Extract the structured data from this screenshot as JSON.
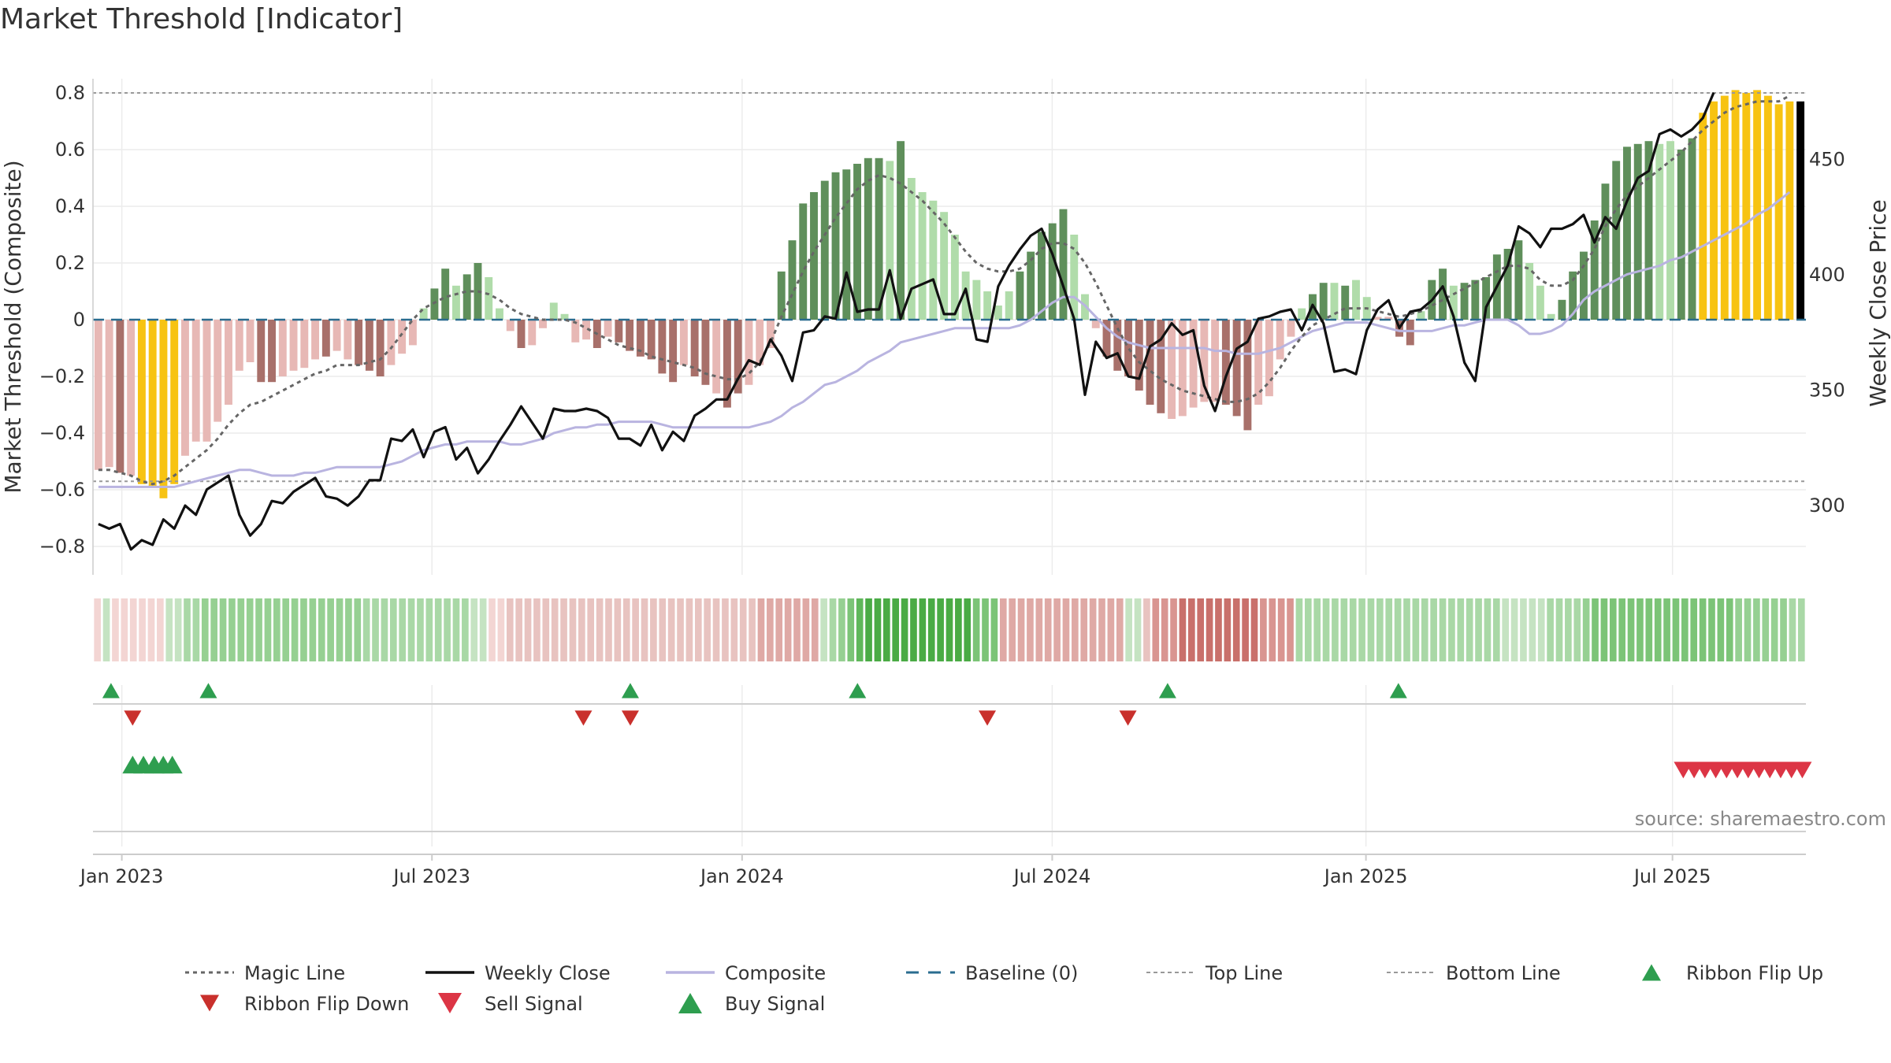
{
  "chart_data": {
    "type": "bar",
    "title": "Market Threshold [Indicator]",
    "ylabel": "Market Threshold (Composite)",
    "y2label": "Weekly Close Price",
    "ylim": [
      -0.9,
      0.85
    ],
    "y2lim": [
      270,
      485
    ],
    "y_ticks": [
      0.8,
      0.6,
      0.4,
      0.2,
      0,
      -0.2,
      -0.4,
      -0.6,
      -0.8
    ],
    "y_tick_labels": [
      "0.8",
      "0.6",
      "0.4",
      "0.2",
      "0",
      "−0.2",
      "−0.4",
      "−0.6",
      "−0.8"
    ],
    "y2_ticks": [
      450,
      400,
      350,
      300
    ],
    "y2_tick_labels": [
      "450",
      "400",
      "350",
      "300"
    ],
    "x_ticks": [
      1.6,
      18.8,
      36,
      53.2,
      70.6,
      87.6
    ],
    "x_tick_labels": [
      "Jan 2023",
      "Jul 2023",
      "Jan 2024",
      "Jul 2024",
      "Jan 2025",
      "Jul 2025"
    ],
    "n_weeks": 95,
    "top_line": 0.8,
    "bottom_line": -0.57,
    "bars": [
      -0.53,
      -0.52,
      -0.54,
      -0.55,
      -0.58,
      -0.59,
      -0.63,
      -0.58,
      -0.48,
      -0.43,
      -0.43,
      -0.36,
      -0.3,
      -0.18,
      -0.15,
      -0.22,
      -0.22,
      -0.2,
      -0.18,
      -0.17,
      -0.14,
      -0.13,
      -0.11,
      -0.14,
      -0.16,
      -0.18,
      -0.2,
      -0.16,
      -0.12,
      -0.09,
      0.04,
      0.11,
      0.18,
      0.12,
      0.16,
      0.2,
      0.15,
      0.04,
      -0.04,
      -0.1,
      -0.09,
      -0.03,
      0.06,
      0.02,
      -0.08,
      -0.07,
      -0.1,
      -0.06,
      -0.08,
      -0.11,
      -0.13,
      -0.14,
      -0.19,
      -0.22,
      -0.16,
      -0.2,
      -0.23,
      -0.26,
      -0.31,
      -0.26,
      -0.23,
      -0.16,
      -0.1,
      0.17,
      0.28,
      0.41,
      0.45,
      0.49,
      0.52,
      0.53,
      0.55,
      0.57,
      0.57,
      0.56,
      0.63,
      0.5,
      0.45,
      0.42,
      0.38,
      0.3,
      0.17,
      0.14,
      0.1,
      0.05,
      0.1,
      0.17,
      0.24,
      0.31,
      0.34,
      0.39,
      0.3,
      0.09,
      -0.03,
      -0.13,
      -0.18,
      -0.2,
      -0.25,
      -0.3,
      -0.33,
      -0.35,
      -0.34,
      -0.31,
      -0.29,
      -0.29,
      -0.3,
      -0.34,
      -0.39,
      -0.3,
      -0.27,
      -0.14,
      -0.06,
      0.04,
      0.09,
      0.13,
      0.13,
      0.12,
      0.14,
      0.08,
      0.01,
      0.01,
      -0.06,
      -0.09,
      0.03,
      0.14,
      0.18,
      0.12,
      0.13,
      0.14,
      0.15,
      0.23,
      0.25,
      0.28,
      0.2,
      0.12,
      0.02,
      0.07,
      0.17,
      0.24,
      0.35,
      0.48,
      0.56,
      0.61,
      0.62,
      0.63,
      0.62,
      0.63,
      0.6,
      0.64,
      0.73,
      0.77,
      0.79,
      0.81,
      0.8,
      0.81,
      0.79,
      0.76,
      0.77,
      0.77
    ],
    "bar_colors": [
      "#e7b8b5",
      "#e7b8b5",
      "#a8706a",
      "#e7b8b5",
      "#f7c312",
      "#f7c312",
      "#f7c312",
      "#f7c312",
      "#e7b8b5",
      "#e7b8b5",
      "#e7b8b5",
      "#e7b8b5",
      "#e7b8b5",
      "#e7b8b5",
      "#e7b8b5",
      "#a8706a",
      "#a8706a",
      "#e7b8b5",
      "#e7b8b5",
      "#e7b8b5",
      "#e7b8b5",
      "#a8706a",
      "#e7b8b5",
      "#e7b8b5",
      "#a8706a",
      "#a8706a",
      "#a8706a",
      "#e7b8b5",
      "#e7b8b5",
      "#e7b8b5",
      "#b0dcaa",
      "#5f8f5b",
      "#5f8f5b",
      "#b0dcaa",
      "#5f8f5b",
      "#5f8f5b",
      "#b0dcaa",
      "#b0dcaa",
      "#e7b8b5",
      "#a8706a",
      "#e7b8b5",
      "#e7b8b5",
      "#b0dcaa",
      "#b0dcaa",
      "#e7b8b5",
      "#e7b8b5",
      "#a8706a",
      "#e7b8b5",
      "#a8706a",
      "#a8706a",
      "#a8706a",
      "#a8706a",
      "#a8706a",
      "#a8706a",
      "#e7b8b5",
      "#a8706a",
      "#a8706a",
      "#e7b8b5",
      "#a8706a",
      "#a8706a",
      "#e7b8b5",
      "#e7b8b5",
      "#e7b8b5",
      "#5f8f5b",
      "#5f8f5b",
      "#5f8f5b",
      "#5f8f5b",
      "#5f8f5b",
      "#5f8f5b",
      "#5f8f5b",
      "#5f8f5b",
      "#5f8f5b",
      "#5f8f5b",
      "#b0dcaa",
      "#5f8f5b",
      "#b0dcaa",
      "#b0dcaa",
      "#b0dcaa",
      "#b0dcaa",
      "#b0dcaa",
      "#b0dcaa",
      "#b0dcaa",
      "#b0dcaa",
      "#b0dcaa",
      "#b0dcaa",
      "#5f8f5b",
      "#5f8f5b",
      "#5f8f5b",
      "#5f8f5b",
      "#5f8f5b",
      "#b0dcaa",
      "#b0dcaa",
      "#e7b8b5",
      "#a8706a",
      "#a8706a",
      "#a8706a",
      "#a8706a",
      "#a8706a",
      "#a8706a",
      "#e7b8b5",
      "#e7b8b5",
      "#e7b8b5",
      "#e7b8b5",
      "#e7b8b5",
      "#a8706a",
      "#a8706a",
      "#a8706a",
      "#e7b8b5",
      "#e7b8b5",
      "#e7b8b5",
      "#e7b8b5",
      "#b0dcaa",
      "#5f8f5b",
      "#5f8f5b",
      "#b0dcaa",
      "#5f8f5b",
      "#b0dcaa",
      "#b0dcaa",
      "#e7b8b5",
      "#e7b8b5",
      "#a8706a",
      "#a8706a",
      "#b0dcaa",
      "#5f8f5b",
      "#5f8f5b",
      "#b0dcaa",
      "#5f8f5b",
      "#5f8f5b",
      "#5f8f5b",
      "#5f8f5b",
      "#5f8f5b",
      "#5f8f5b",
      "#b0dcaa",
      "#b0dcaa",
      "#b0dcaa",
      "#5f8f5b",
      "#5f8f5b",
      "#5f8f5b",
      "#5f8f5b",
      "#5f8f5b",
      "#5f8f5b",
      "#5f8f5b",
      "#5f8f5b",
      "#5f8f5b",
      "#b0dcaa",
      "#b0dcaa",
      "#5f8f5b",
      "#5f8f5b",
      "#f7c312",
      "#f7c312",
      "#f7c312",
      "#f7c312",
      "#f7c312",
      "#f7c312",
      "#f7c312",
      "#f7c312",
      "#f7c312"
    ],
    "magic_line": [
      -0.53,
      -0.53,
      -0.54,
      -0.55,
      -0.57,
      -0.58,
      -0.57,
      -0.55,
      -0.52,
      -0.49,
      -0.46,
      -0.42,
      -0.37,
      -0.33,
      -0.3,
      -0.29,
      -0.27,
      -0.25,
      -0.23,
      -0.21,
      -0.19,
      -0.18,
      -0.16,
      -0.16,
      -0.16,
      -0.15,
      -0.14,
      -0.1,
      -0.05,
      0.0,
      0.04,
      0.06,
      0.08,
      0.09,
      0.1,
      0.1,
      0.09,
      0.07,
      0.04,
      0.02,
      0.01,
      0.0,
      0.0,
      0.0,
      -0.01,
      -0.03,
      -0.05,
      -0.07,
      -0.09,
      -0.1,
      -0.11,
      -0.13,
      -0.14,
      -0.15,
      -0.16,
      -0.17,
      -0.19,
      -0.2,
      -0.21,
      -0.21,
      -0.19,
      -0.15,
      -0.08,
      0.01,
      0.09,
      0.17,
      0.24,
      0.3,
      0.36,
      0.41,
      0.46,
      0.49,
      0.51,
      0.5,
      0.48,
      0.45,
      0.42,
      0.38,
      0.34,
      0.29,
      0.24,
      0.2,
      0.18,
      0.17,
      0.17,
      0.18,
      0.21,
      0.25,
      0.27,
      0.27,
      0.25,
      0.2,
      0.13,
      0.05,
      -0.03,
      -0.1,
      -0.15,
      -0.18,
      -0.21,
      -0.23,
      -0.25,
      -0.26,
      -0.27,
      -0.28,
      -0.29,
      -0.29,
      -0.28,
      -0.26,
      -0.22,
      -0.17,
      -0.11,
      -0.06,
      -0.02,
      0.0,
      0.02,
      0.04,
      0.04,
      0.04,
      0.03,
      0.02,
      0.01,
      0.02,
      0.03,
      0.05,
      0.07,
      0.09,
      0.11,
      0.13,
      0.15,
      0.17,
      0.19,
      0.19,
      0.18,
      0.14,
      0.12,
      0.12,
      0.14,
      0.19,
      0.25,
      0.33,
      0.39,
      0.44,
      0.47,
      0.5,
      0.53,
      0.56,
      0.59,
      0.63,
      0.67,
      0.7,
      0.73,
      0.75,
      0.76,
      0.77,
      0.77,
      0.77,
      0.79
    ],
    "composite_line": [
      -0.59,
      -0.59,
      -0.59,
      -0.59,
      -0.59,
      -0.59,
      -0.59,
      -0.59,
      -0.58,
      -0.57,
      -0.56,
      -0.55,
      -0.54,
      -0.53,
      -0.53,
      -0.54,
      -0.55,
      -0.55,
      -0.55,
      -0.54,
      -0.54,
      -0.53,
      -0.52,
      -0.52,
      -0.52,
      -0.52,
      -0.52,
      -0.51,
      -0.5,
      -0.48,
      -0.46,
      -0.45,
      -0.44,
      -0.44,
      -0.43,
      -0.43,
      -0.43,
      -0.43,
      -0.44,
      -0.44,
      -0.43,
      -0.42,
      -0.4,
      -0.39,
      -0.38,
      -0.38,
      -0.37,
      -0.37,
      -0.36,
      -0.36,
      -0.36,
      -0.36,
      -0.37,
      -0.38,
      -0.38,
      -0.38,
      -0.38,
      -0.38,
      -0.38,
      -0.38,
      -0.38,
      -0.37,
      -0.36,
      -0.34,
      -0.31,
      -0.29,
      -0.26,
      -0.23,
      -0.22,
      -0.2,
      -0.18,
      -0.15,
      -0.13,
      -0.11,
      -0.08,
      -0.07,
      -0.06,
      -0.05,
      -0.04,
      -0.03,
      -0.03,
      -0.03,
      -0.03,
      -0.03,
      -0.03,
      -0.02,
      0.0,
      0.03,
      0.06,
      0.08,
      0.08,
      0.05,
      0.01,
      -0.03,
      -0.06,
      -0.08,
      -0.09,
      -0.1,
      -0.1,
      -0.1,
      -0.1,
      -0.1,
      -0.1,
      -0.11,
      -0.11,
      -0.12,
      -0.12,
      -0.12,
      -0.11,
      -0.1,
      -0.08,
      -0.06,
      -0.04,
      -0.03,
      -0.02,
      -0.01,
      -0.01,
      -0.01,
      -0.02,
      -0.03,
      -0.04,
      -0.04,
      -0.04,
      -0.04,
      -0.03,
      -0.02,
      -0.02,
      -0.01,
      0.0,
      0.0,
      0.0,
      -0.02,
      -0.05,
      -0.05,
      -0.04,
      -0.02,
      0.02,
      0.07,
      0.1,
      0.12,
      0.14,
      0.16,
      0.17,
      0.18,
      0.19,
      0.21,
      0.22,
      0.24,
      0.26,
      0.28,
      0.3,
      0.32,
      0.34,
      0.37,
      0.39,
      0.42,
      0.45
    ],
    "weekly_close": [
      292,
      290,
      292,
      281,
      285,
      283,
      294,
      290,
      300,
      296,
      307,
      310,
      313,
      296,
      287,
      292,
      302,
      301,
      306,
      309,
      312,
      304,
      303,
      300,
      304,
      311,
      311,
      329,
      328,
      333,
      321,
      332,
      334,
      320,
      325,
      314,
      320,
      328,
      335,
      343,
      336,
      329,
      342,
      341,
      341,
      342,
      341,
      338,
      329,
      329,
      326,
      335,
      324,
      332,
      328,
      339,
      342,
      346,
      346,
      355,
      363,
      361,
      372,
      365,
      354,
      375,
      376,
      382,
      381,
      401,
      384,
      385,
      385,
      402,
      381,
      394,
      396,
      398,
      383,
      383,
      394,
      372,
      371,
      395,
      404,
      411,
      417,
      420,
      409,
      395,
      381,
      348,
      371,
      364,
      366,
      356,
      355,
      369,
      372,
      379,
      374,
      376,
      352,
      341,
      356,
      368,
      371,
      381,
      382,
      384,
      385,
      376,
      387,
      379,
      358,
      359,
      357,
      376,
      385,
      389,
      377,
      384,
      385,
      389,
      395,
      382,
      362,
      354,
      386,
      395,
      404,
      421,
      418,
      412,
      420,
      420,
      422,
      426,
      414,
      425,
      420,
      432,
      442,
      445,
      461,
      463,
      460,
      463,
      468,
      479
    ],
    "ribbon_colors": [
      "#f3d5d3",
      "#c5e3c2",
      "#f3d5d3",
      "#f3d5d3",
      "#f3d5d3",
      "#f3d5d3",
      "#f3d5d3",
      "#f3d5d3",
      "#c5e3c2",
      "#c5e3c2",
      "#a9d8a6",
      "#a9d8a6",
      "#96d092",
      "#96d092",
      "#96d092",
      "#96d092",
      "#96d092",
      "#96d092",
      "#96d092",
      "#96d092",
      "#96d092",
      "#96d092",
      "#96d092",
      "#96d092",
      "#96d092",
      "#96d092",
      "#96d092",
      "#96d092",
      "#96d092",
      "#96d092",
      "#a9d8a6",
      "#a9d8a6",
      "#a9d8a6",
      "#a9d8a6",
      "#a9d8a6",
      "#a9d8a6",
      "#a9d8a6",
      "#a9d8a6",
      "#a9d8a6",
      "#a9d8a6",
      "#a9d8a6",
      "#a9d8a6",
      "#c5e3c2",
      "#c5e3c2",
      "#f3d5d3",
      "#f3d5d3",
      "#e8c3c0",
      "#e8c3c0",
      "#e8c3c0",
      "#e8c3c0",
      "#e8c3c0",
      "#e8c3c0",
      "#e8c3c0",
      "#e8c3c0",
      "#e8c3c0",
      "#e8c3c0",
      "#e8c3c0",
      "#e8c3c0",
      "#e8c3c0",
      "#e8c3c0",
      "#e8c3c0",
      "#e8c3c0",
      "#e8c3c0",
      "#e8c3c0",
      "#e8c3c0",
      "#e8c3c0",
      "#e8c3c0",
      "#e8c3c0",
      "#e8c3c0",
      "#e8c3c0",
      "#e8c3c0",
      "#e8c3c0",
      "#e8c3c0",
      "#e8c3c0",
      "#dfa9a5",
      "#dfa9a5",
      "#dfa9a5",
      "#dfa9a5",
      "#dfa9a5",
      "#dfa9a5",
      "#dfa9a5",
      "#c5e3c2",
      "#a9d8a6",
      "#96d092",
      "#7cc477",
      "#5fb75a",
      "#4aab45",
      "#4aab45",
      "#4aab45",
      "#4aab45",
      "#4aab45",
      "#4aab45",
      "#4aab45",
      "#4aab45",
      "#4aab45",
      "#4aab45",
      "#4aab45",
      "#4aab45",
      "#7cc477",
      "#7cc477",
      "#7cc477",
      "#dfa9a5",
      "#dfa9a5",
      "#dfa9a5",
      "#dfa9a5",
      "#dfa9a5",
      "#dfa9a5",
      "#dfa9a5",
      "#dfa9a5",
      "#dfa9a5",
      "#dfa9a5",
      "#dfa9a5",
      "#dfa9a5",
      "#dfa9a5",
      "#dfa9a5",
      "#c5e3c2",
      "#c5e3c2",
      "#e8c3c0",
      "#d99591",
      "#d99591",
      "#d99591",
      "#c9706b",
      "#c9706b",
      "#c9706b",
      "#c9706b",
      "#c9706b",
      "#c9706b",
      "#c9706b",
      "#c9706b",
      "#c9706b",
      "#d99591",
      "#d99591",
      "#d99591",
      "#d99591",
      "#a9d8a6",
      "#a9d8a6",
      "#a9d8a6",
      "#a9d8a6",
      "#a9d8a6",
      "#a9d8a6",
      "#a9d8a6",
      "#a9d8a6",
      "#a9d8a6",
      "#a9d8a6",
      "#a9d8a6",
      "#a9d8a6",
      "#a9d8a6",
      "#a9d8a6",
      "#a9d8a6",
      "#a9d8a6",
      "#a9d8a6",
      "#a9d8a6",
      "#a9d8a6",
      "#a9d8a6",
      "#a9d8a6",
      "#a9d8a6",
      "#a9d8a6",
      "#c5e3c2",
      "#c5e3c2",
      "#c5e3c2",
      "#c5e3c2",
      "#c5e3c2",
      "#a9d8a6",
      "#a9d8a6",
      "#a9d8a6",
      "#a9d8a6",
      "#96d092",
      "#7cc477",
      "#7cc477",
      "#7cc477",
      "#7cc477",
      "#7cc477",
      "#7cc477",
      "#7cc477",
      "#7cc477",
      "#7cc477",
      "#7cc477",
      "#7cc477",
      "#7cc477",
      "#7cc477",
      "#7cc477",
      "#7cc477",
      "#7cc477",
      "#96d092",
      "#96d092",
      "#96d092",
      "#96d092",
      "#96d092",
      "#96d092",
      "#a9d8a6",
      "#a9d8a6"
    ],
    "ribbon_flip_up": [
      1.0,
      6.4,
      29.8,
      42.4,
      59.6,
      72.4
    ],
    "ribbon_flip_down": [
      2.2,
      27.2,
      29.8,
      49.6,
      57.4
    ],
    "buy_signals": [
      2.2,
      2.8,
      3.4,
      3.9,
      4.4
    ],
    "sell_signals": [
      88.2,
      88.8,
      89.4,
      90.0,
      90.6,
      91.2,
      91.8,
      92.4,
      93.0,
      93.6,
      94.2,
      94.8
    ],
    "colors": {
      "bar_dark_green": "#5f8f5b",
      "bar_light_green": "#b0dcaa",
      "bar_dark_red": "#a8706a",
      "bar_light_red": "#e7b8b5",
      "bar_yellow": "#f7c312",
      "magic_line": "#666666",
      "weekly_close": "#111111",
      "composite": "#b9b4e0",
      "baseline": "#2a6c8f",
      "ref_lines": "#999999",
      "flip_up": "#2e9e4f",
      "flip_down": "#c9302c",
      "sell": "#dc3545",
      "buy": "#2e9e4f"
    },
    "legend": [
      {
        "label": "Magic Line",
        "type": "dotted-line"
      },
      {
        "label": "Weekly Close",
        "type": "solid-line"
      },
      {
        "label": "Composite",
        "type": "composite-line"
      },
      {
        "label": "Baseline (0)",
        "type": "dashed-line"
      },
      {
        "label": "Top Line",
        "type": "fine-dashed-line"
      },
      {
        "label": "Bottom Line",
        "type": "fine-dashed-line"
      },
      {
        "label": "Ribbon Flip Up",
        "type": "tri-up-small"
      },
      {
        "label": "Ribbon Flip Down",
        "type": "tri-down-small"
      },
      {
        "label": "Sell Signal",
        "type": "tri-down-big"
      },
      {
        "label": "Buy Signal",
        "type": "tri-up-big"
      }
    ],
    "legend_position": "bottom",
    "source": "source: sharemaestro.com"
  }
}
